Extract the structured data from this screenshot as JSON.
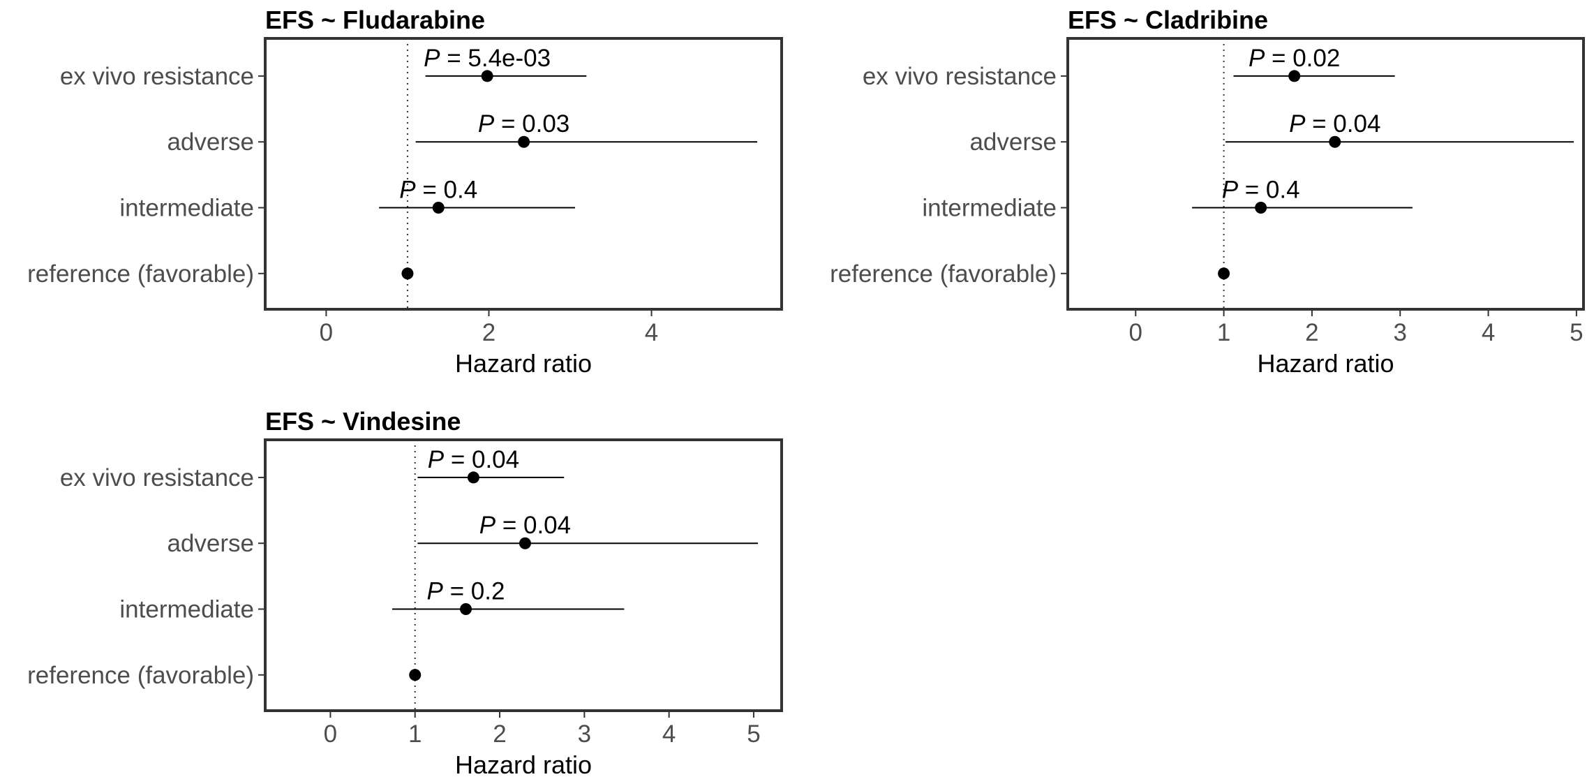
{
  "chart_data": [
    {
      "type": "forest",
      "title": "EFS ~ Fludarabine",
      "xlabel": "Hazard ratio",
      "xlim": [
        -0.75,
        5.6
      ],
      "xticks": [
        0,
        2,
        4
      ],
      "reference_line": 1,
      "rows": [
        {
          "label": "ex vivo resistance",
          "hr": 1.98,
          "lower": 1.22,
          "upper": 3.2,
          "p_value": "5.4e-03"
        },
        {
          "label": "adverse",
          "hr": 2.43,
          "lower": 1.1,
          "upper": 5.3,
          "p_value": "0.03"
        },
        {
          "label": "intermediate",
          "hr": 1.38,
          "lower": 0.65,
          "upper": 3.06,
          "p_value": "0.4"
        },
        {
          "label": "reference (favorable)",
          "hr": 1.0,
          "lower": null,
          "upper": null,
          "p_value": ""
        }
      ]
    },
    {
      "type": "forest",
      "title": "EFS ~ Cladribine",
      "xlabel": "Hazard ratio",
      "xlim": [
        -0.77,
        5.08
      ],
      "xticks": [
        0,
        1,
        2,
        3,
        4,
        5
      ],
      "reference_line": 1,
      "rows": [
        {
          "label": "ex vivo resistance",
          "hr": 1.8,
          "lower": 1.11,
          "upper": 2.94,
          "p_value": "0.02"
        },
        {
          "label": "adverse",
          "hr": 2.26,
          "lower": 1.02,
          "upper": 4.97,
          "p_value": "0.04"
        },
        {
          "label": "intermediate",
          "hr": 1.42,
          "lower": 0.64,
          "upper": 3.14,
          "p_value": "0.4"
        },
        {
          "label": "reference (favorable)",
          "hr": 1.0,
          "lower": null,
          "upper": null,
          "p_value": ""
        }
      ]
    },
    {
      "type": "forest",
      "title": "EFS ~ Vindesine",
      "xlabel": "Hazard ratio",
      "xlim": [
        -0.77,
        5.33
      ],
      "xticks": [
        0,
        1,
        2,
        3,
        4,
        5
      ],
      "reference_line": 1,
      "rows": [
        {
          "label": "ex vivo resistance",
          "hr": 1.69,
          "lower": 1.03,
          "upper": 2.76,
          "p_value": "0.04"
        },
        {
          "label": "adverse",
          "hr": 2.3,
          "lower": 1.03,
          "upper": 5.05,
          "p_value": "0.04"
        },
        {
          "label": "intermediate",
          "hr": 1.6,
          "lower": 0.73,
          "upper": 3.47,
          "p_value": "0.2"
        },
        {
          "label": "reference (favorable)",
          "hr": 1.0,
          "lower": null,
          "upper": null,
          "p_value": ""
        }
      ]
    }
  ]
}
